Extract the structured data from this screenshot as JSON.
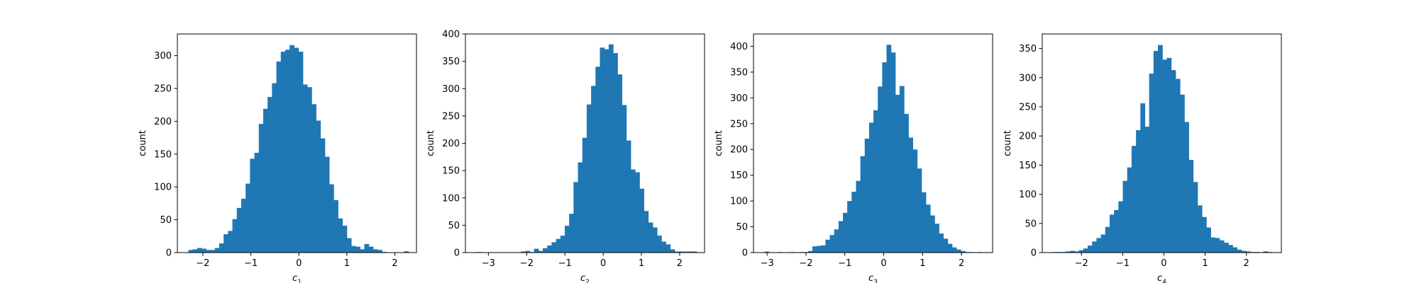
{
  "bar_color": "#1f77b4",
  "chart_data": [
    {
      "type": "bar",
      "xlabel": "c",
      "xlabel_sub": "1",
      "ylabel": "count",
      "xlim": [
        -2.53,
        2.45
      ],
      "ylim": [
        0,
        333
      ],
      "xticks": [
        -2,
        -1,
        0,
        1,
        2
      ],
      "yticks": [
        0,
        50,
        100,
        150,
        200,
        250,
        300
      ],
      "bin_start": -2.3,
      "bin_width": 0.0916,
      "values": [
        4,
        5,
        7,
        6,
        4,
        4,
        7,
        14,
        28,
        33,
        51,
        68,
        82,
        105,
        143,
        152,
        196,
        219,
        237,
        258,
        291,
        306,
        309,
        316,
        312,
        306,
        256,
        252,
        226,
        201,
        174,
        146,
        104,
        80,
        52,
        41,
        22,
        10,
        9,
        5,
        13,
        9,
        5,
        4,
        1,
        0,
        0,
        0,
        0,
        2
      ]
    },
    {
      "type": "bar",
      "xlabel": "c",
      "xlabel_sub": "2",
      "ylabel": "count",
      "xlim": [
        -3.6,
        2.65
      ],
      "ylim": [
        0,
        400
      ],
      "xticks": [
        -3,
        -2,
        -1,
        0,
        1,
        2
      ],
      "yticks": [
        0,
        50,
        100,
        150,
        200,
        250,
        300,
        350,
        400
      ],
      "bin_start": -3.3,
      "bin_width": 0.1148,
      "values": [
        1,
        0,
        0,
        0,
        0,
        0,
        0,
        0,
        0,
        0,
        2,
        3,
        1,
        7,
        3,
        8,
        13,
        19,
        25,
        31,
        49,
        71,
        129,
        165,
        210,
        271,
        305,
        340,
        375,
        372,
        381,
        365,
        326,
        270,
        205,
        152,
        147,
        117,
        76,
        55,
        46,
        31,
        20,
        15,
        6,
        2,
        2,
        2,
        2,
        2
      ]
    },
    {
      "type": "bar",
      "xlabel": "c",
      "xlabel_sub": "3",
      "ylabel": "count",
      "xlim": [
        -3.35,
        2.8
      ],
      "ylim": [
        0,
        424
      ],
      "xticks": [
        -3,
        -2,
        -1,
        0,
        1,
        2
      ],
      "yticks": [
        0,
        50,
        100,
        150,
        200,
        250,
        300,
        350,
        400
      ],
      "bin_start": -3.07,
      "bin_width": 0.1122,
      "values": [
        2,
        0,
        0,
        1,
        0,
        0,
        1,
        0,
        1,
        1,
        3,
        12,
        13,
        14,
        25,
        34,
        45,
        61,
        77,
        100,
        118,
        139,
        187,
        221,
        252,
        276,
        322,
        369,
        403,
        388,
        306,
        323,
        269,
        223,
        200,
        163,
        117,
        93,
        72,
        56,
        37,
        27,
        17,
        10,
        6,
        3,
        1,
        1,
        0,
        1
      ]
    },
    {
      "type": "bar",
      "xlabel": "c",
      "xlabel_sub": "4",
      "ylabel": "count",
      "xlim": [
        -2.95,
        2.85
      ],
      "ylim": [
        0,
        375
      ],
      "xticks": [
        -2,
        -1,
        0,
        1,
        2
      ],
      "yticks": [
        0,
        50,
        100,
        150,
        200,
        250,
        300,
        350
      ],
      "bin_start": -2.7,
      "bin_width": 0.1065,
      "values": [
        1,
        1,
        1,
        2,
        3,
        2,
        4,
        7,
        12,
        19,
        25,
        31,
        44,
        65,
        73,
        88,
        123,
        146,
        183,
        210,
        256,
        216,
        307,
        346,
        356,
        331,
        334,
        313,
        298,
        271,
        224,
        159,
        121,
        81,
        61,
        43,
        26,
        25,
        21,
        17,
        13,
        9,
        5,
        3,
        2,
        1,
        1,
        0,
        2,
        1
      ]
    }
  ]
}
